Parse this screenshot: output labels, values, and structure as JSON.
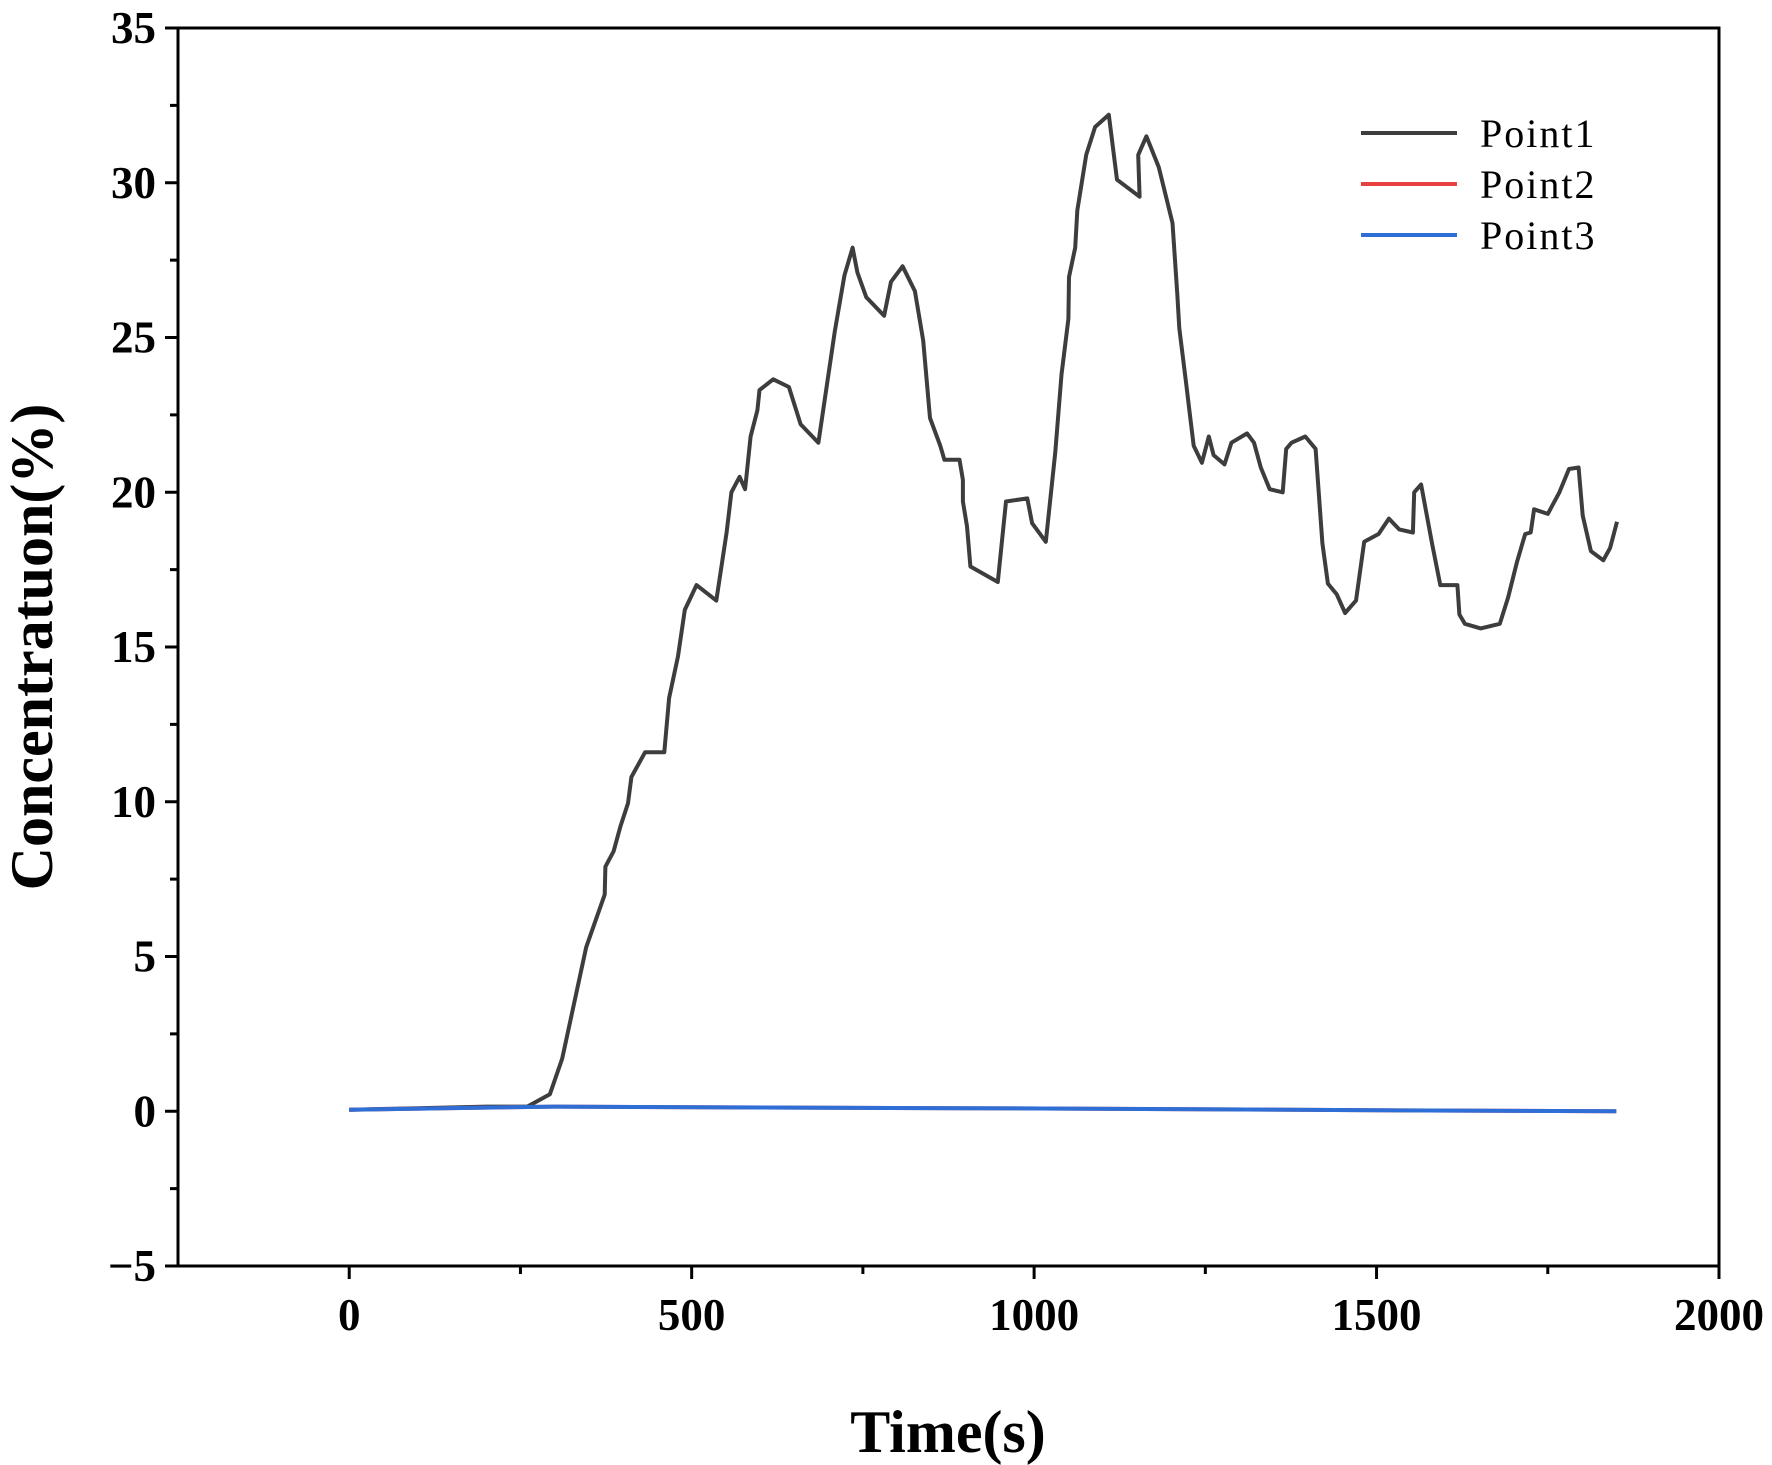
{
  "chart_data": {
    "type": "line",
    "xlabel": "Time(s)",
    "ylabel": "Concentratuon(%)",
    "xlim": [
      -250,
      2000
    ],
    "ylim": [
      -5,
      35
    ],
    "xticks": [
      0,
      500,
      1000,
      1500,
      2000
    ],
    "xminorticks": [
      250,
      750,
      1250,
      1750
    ],
    "yticks": [
      {
        "value": -5,
        "label": "−5"
      },
      0,
      5,
      10,
      15,
      20,
      25,
      30,
      35
    ],
    "yminorticks": [
      -2.5,
      2.5,
      7.5,
      12.5,
      17.5,
      22.5,
      27.5,
      32.5
    ],
    "legend": "upper right",
    "series": [
      {
        "name": "Point1",
        "color": "#3d3d3d",
        "x": [
          0,
          100,
          200,
          260,
          293,
          311,
          346,
          373,
          374,
          386,
          396,
          407,
          412,
          432,
          460,
          467,
          480,
          490,
          507,
          536,
          551,
          558,
          570,
          578,
          586,
          596,
          599,
          619,
          642,
          659,
          685,
          709,
          723,
          735,
          742,
          755,
          781,
          791,
          808,
          826,
          838,
          848,
          863,
          869,
          891,
          896,
          896,
          902,
          907,
          947,
          959,
          990,
          997,
          1017,
          1031,
          1040,
          1050,
          1051,
          1060,
          1063,
          1076,
          1089,
          1109,
          1121,
          1154,
          1152,
          1164,
          1182,
          1202,
          1209,
          1212,
          1222,
          1228,
          1233,
          1245,
          1255,
          1262,
          1278,
          1288,
          1311,
          1321,
          1331,
          1344,
          1363,
          1368,
          1376,
          1396,
          1411,
          1421,
          1429,
          1442,
          1454,
          1470,
          1482,
          1503,
          1518,
          1533,
          1553,
          1555,
          1565,
          1581,
          1593,
          1618,
          1621,
          1629,
          1652,
          1680,
          1692,
          1705,
          1717,
          1725,
          1730,
          1750,
          1767,
          1781,
          1795,
          1801,
          1813,
          1831,
          1841,
          1851
        ],
        "values": [
          0.05,
          0.1,
          0.15,
          0.15,
          0.55,
          1.7,
          5.3,
          7.0,
          7.9,
          8.4,
          9.2,
          9.95,
          10.8,
          11.6,
          11.6,
          13.35,
          14.7,
          16.2,
          17.0,
          16.5,
          18.7,
          20.0,
          20.5,
          20.1,
          21.8,
          22.65,
          23.3,
          23.65,
          23.4,
          22.2,
          21.6,
          25.2,
          27.0,
          27.9,
          27.1,
          26.3,
          25.7,
          26.8,
          27.3,
          26.5,
          24.9,
          22.4,
          21.5,
          21.05,
          21.05,
          20.4,
          19.7,
          18.9,
          17.6,
          17.1,
          19.7,
          19.8,
          19.0,
          18.4,
          21.3,
          23.8,
          25.6,
          26.95,
          27.9,
          29.1,
          30.9,
          31.8,
          32.2,
          30.1,
          29.55,
          30.9,
          31.5,
          30.5,
          28.7,
          26.4,
          25.3,
          23.5,
          22.4,
          21.5,
          20.95,
          21.8,
          21.2,
          20.9,
          21.6,
          21.9,
          21.6,
          20.8,
          20.1,
          20.0,
          21.4,
          21.6,
          21.8,
          21.4,
          18.35,
          17.05,
          16.7,
          16.1,
          16.5,
          18.4,
          18.65,
          19.15,
          18.8,
          18.7,
          20.0,
          20.25,
          18.35,
          17.0,
          17.0,
          16.05,
          15.75,
          15.6,
          15.75,
          16.6,
          17.75,
          18.65,
          18.7,
          19.45,
          19.3,
          20.0,
          20.75,
          20.8,
          19.25,
          18.1,
          17.8,
          18.2,
          19.05
        ]
      },
      {
        "name": "Point2",
        "color": "#e8403f",
        "x": [
          0,
          300,
          600,
          900,
          1200,
          1500,
          1850
        ],
        "values": [
          0.05,
          0.15,
          0.12,
          0.1,
          0.07,
          0.03,
          0.0
        ]
      },
      {
        "name": "Point3",
        "color": "#2d6fd6",
        "x": [
          0,
          300,
          600,
          900,
          1200,
          1500,
          1850
        ],
        "values": [
          0.05,
          0.15,
          0.12,
          0.1,
          0.07,
          0.03,
          0.0
        ]
      }
    ]
  }
}
